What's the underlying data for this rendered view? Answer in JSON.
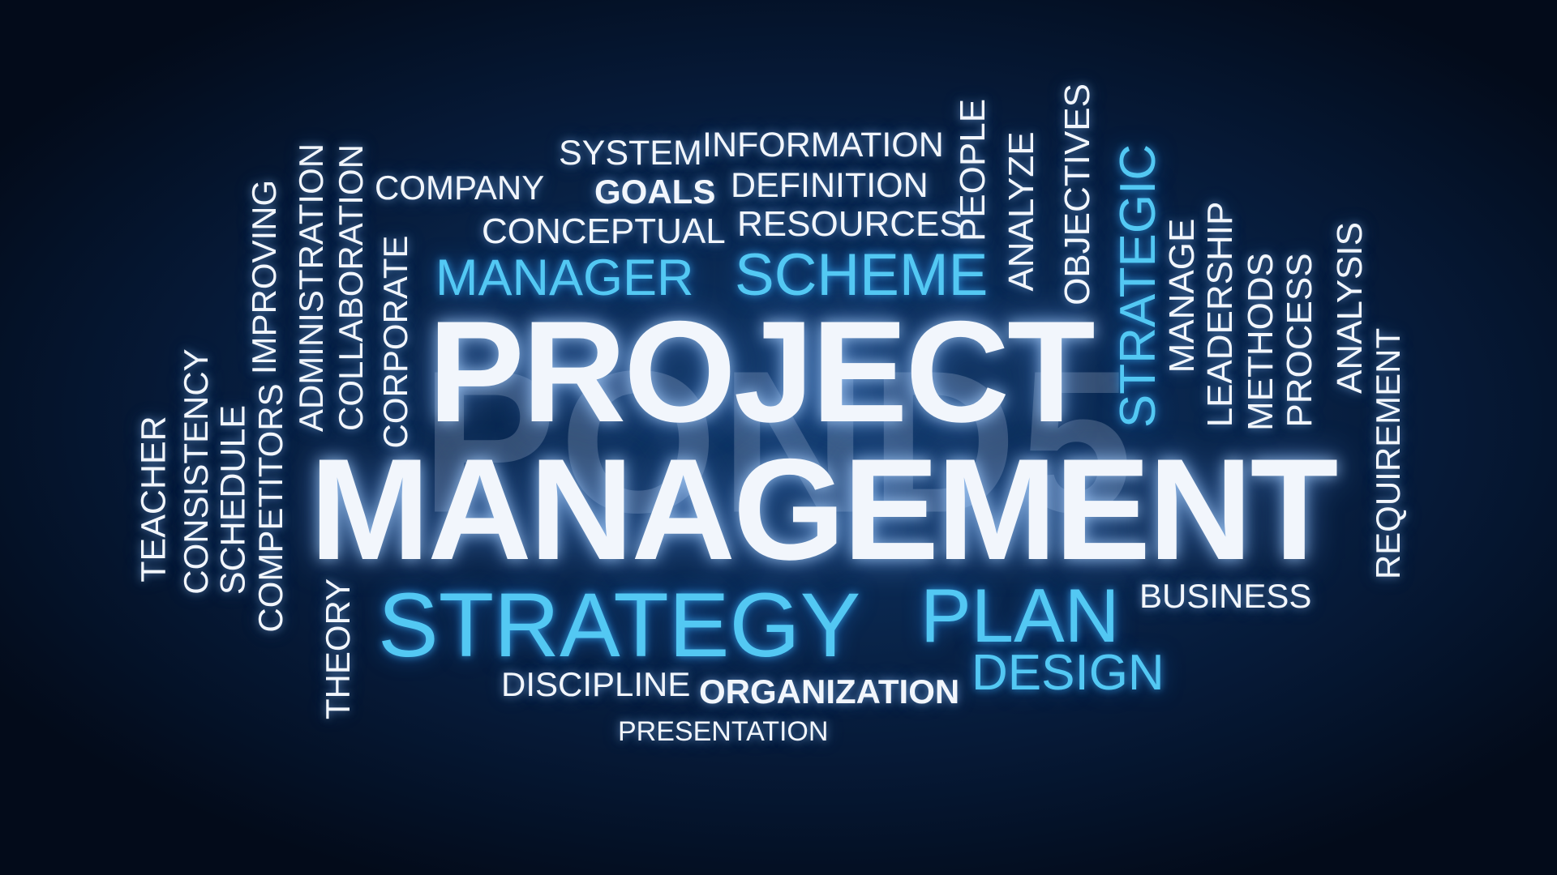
{
  "watermark": "POND5",
  "colors": {
    "background": "#0a2850",
    "word_white": "#f2f6fc",
    "word_blue": "#53c8f3"
  },
  "words": {
    "project": "PROJECT",
    "management": "MANAGEMENT",
    "strategy": "STRATEGY",
    "plan": "PLAN",
    "design": "DESIGN",
    "manager": "MANAGER",
    "scheme": "SCHEME",
    "strategic": "STRATEGIC",
    "system": "SYSTEM",
    "information": "INFORMATION",
    "company": "COMPANY",
    "goals": "GOALS",
    "definition": "DEFINITION",
    "conceptual": "CONCEPTUAL",
    "resources": "RESOURCES",
    "people": "PEOPLE",
    "analyze": "ANALYZE",
    "objectives": "OBJECTIVES",
    "manage": "MANAGE",
    "leadership": "LEADERSHIP",
    "methods": "METHODS",
    "process": "PROCESS",
    "analysis": "ANALYSIS",
    "requirement": "REQUIREMENT",
    "business": "BUSINESS",
    "discipline": "DISCIPLINE",
    "organization": "ORGANIZATION",
    "presentation": "PRESENTATION",
    "theory": "THEORY",
    "teacher": "TEACHER",
    "consistency": "CONSISTENCY",
    "schedule": "SCHEDULE",
    "competitors": "COMPETITORS",
    "improving": "IMPROVING",
    "administration": "ADMINISTRATION",
    "collaboration": "COLLABORATION",
    "corporate": "CORPORATE"
  }
}
